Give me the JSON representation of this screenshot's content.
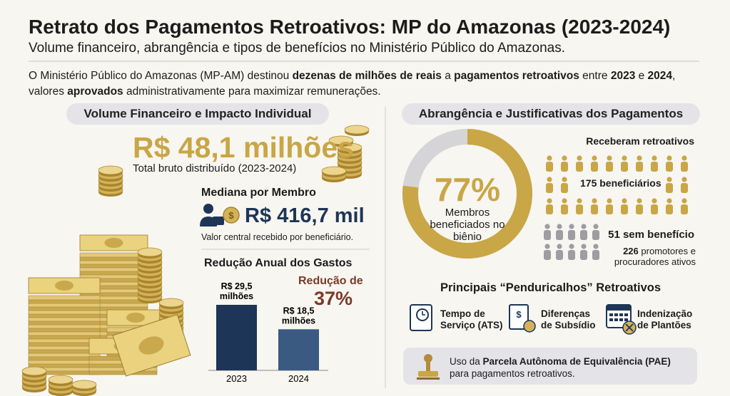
{
  "header": {
    "title": "Retrato dos Pagamentos Retroativos: MP do Amazonas (2023-2024)",
    "subtitle": "Volume financeiro, abrangência e tipos de benefícios no Ministério Público do Amazonas."
  },
  "intro": [
    {
      "text": "O Ministério Público do Amazonas (MP-AM) destinou ",
      "bold": false
    },
    {
      "text": "dezenas de milhões de reais",
      "bold": true
    },
    {
      "text": " a ",
      "bold": false
    },
    {
      "text": "pagamentos retroativos",
      "bold": true
    },
    {
      "text": " entre ",
      "bold": false
    },
    {
      "text": "2023",
      "bold": true
    },
    {
      "text": " e ",
      "bold": false
    },
    {
      "text": "2024",
      "bold": true
    },
    {
      "text": ", valores ",
      "bold": false
    },
    {
      "text": "aprovados",
      "bold": true
    },
    {
      "text": " administrativamente para maximizar remunerações.",
      "bold": false
    }
  ],
  "volume": {
    "heading": "Volume Financeiro e Impacto Individual",
    "total": "R$ 48,1 milhões",
    "total_caption": "Total bruto distribuído (2023-2024)",
    "median_label": "Mediana por Membro",
    "median_value": "R$ 416,7 mil",
    "median_caption": "Valor central recebido por beneficiário."
  },
  "reduction_chart": {
    "type": "bar",
    "title": "Redução Anual dos Gastos",
    "categories": [
      "2023",
      "2024"
    ],
    "values": [
      29.5,
      18.5
    ],
    "value_labels": [
      "R$ 29,5 milhões",
      "R$ 18,5 milhões"
    ],
    "colors": [
      "#1d3557",
      "#3a5a82"
    ],
    "annotation_label": "Redução de",
    "annotation_value": "37%",
    "annotation_color": "#7b3a28"
  },
  "coverage": {
    "heading": "Abrangência e Justificativas dos Pagamentos",
    "donut": {
      "type": "pie",
      "values": [
        77
      ],
      "value_labels": [
        "77%"
      ],
      "label": "Membros beneficiados no biênio",
      "color": "#c9a646",
      "rest_color": "#d5d5d8"
    },
    "received_label": "Receberam retroativos",
    "received_count": "175 beneficiários",
    "not_received_count": "51 sem benefício",
    "active_number": "226",
    "active_text": "promotores e procuradores ativos"
  },
  "penduricalhos": {
    "heading": "Principais “Penduricalhos” Retroativos",
    "items": [
      "Tempo de Serviço (ATS)",
      "Diferenças de Subsídio",
      "Indenização de Plantões"
    ]
  },
  "note": [
    {
      "text": "Uso da ",
      "bold": false
    },
    {
      "text": "Parcela Autônoma de Equivalência (PAE)",
      "bold": true
    },
    {
      "text": " para pagamentos retroativos.",
      "bold": false
    }
  ]
}
